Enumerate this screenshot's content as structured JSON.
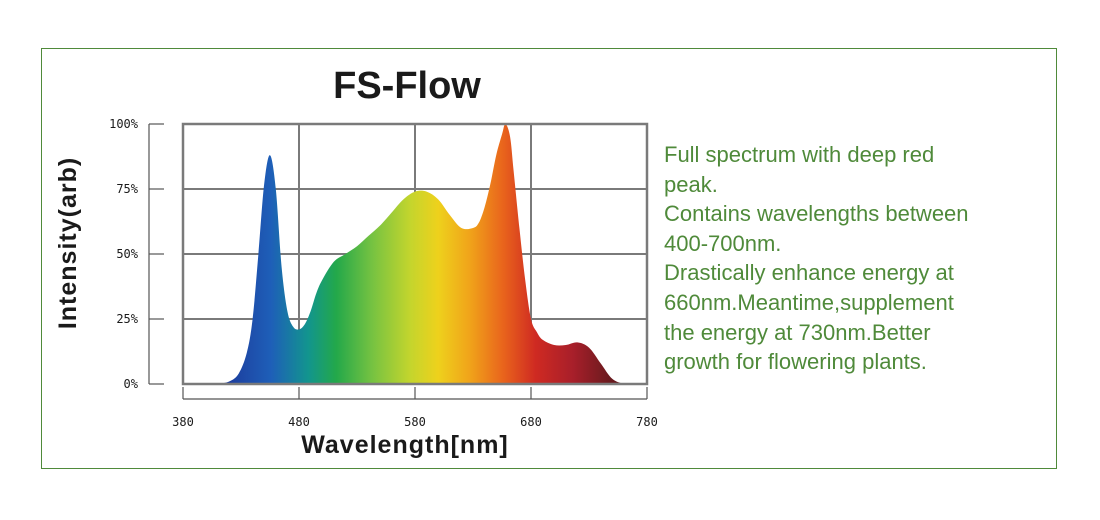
{
  "chart_data": {
    "type": "area",
    "title": "FS-Flow",
    "xlabel": "Wavelength[nm]",
    "ylabel": "Intensity(arb)",
    "xlim": [
      380,
      780
    ],
    "ylim": [
      0,
      100
    ],
    "xticks": [
      380,
      480,
      580,
      680,
      780
    ],
    "ytick_labels": [
      "0%",
      "25%",
      "50%",
      "75%",
      "100%"
    ],
    "yticks": [
      0,
      25,
      50,
      75,
      100
    ],
    "grid": true,
    "legend": "none",
    "series": [
      {
        "x": [
          410,
          420,
          428,
          435,
          440,
          445,
          450,
          455,
          460,
          465,
          470,
          475,
          480,
          485,
          490,
          495,
          500,
          510,
          520,
          530,
          540,
          550,
          560,
          570,
          580,
          590,
          600,
          610,
          620,
          630,
          635,
          640,
          645,
          650,
          655,
          658,
          662,
          665,
          670,
          675,
          680,
          685,
          690,
          700,
          710,
          720,
          730,
          740,
          750,
          760
        ],
        "values": [
          0,
          1,
          4,
          12,
          25,
          50,
          77,
          88,
          75,
          45,
          28,
          22,
          21,
          23,
          28,
          35,
          40,
          47,
          50,
          53,
          57,
          61,
          66,
          71,
          74,
          74,
          71,
          65,
          60,
          60,
          62,
          68,
          77,
          88,
          96,
          100,
          95,
          82,
          60,
          40,
          25,
          20,
          17,
          15,
          15,
          16,
          14,
          8,
          2,
          0
        ]
      }
    ]
  },
  "description": {
    "lines": [
      "Full spectrum with deep red",
      "peak.",
      "Contains wavelengths between",
      "400-700nm.",
      "Drastically enhance energy at",
      "660nm.Meantime,supplement",
      "the energy at 730nm.Better",
      "growth for flowering plants."
    ]
  },
  "colors": {
    "border": "#4f8a3a",
    "text_green": "#4f8a3a",
    "grid": "#7a7a7a",
    "title": "#1a1a1a"
  }
}
